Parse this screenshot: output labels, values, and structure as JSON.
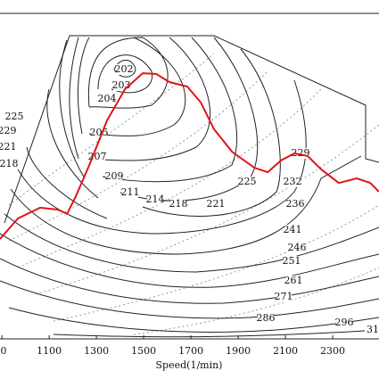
{
  "chart_data": {
    "type": "line",
    "x_label": "Speed(1/min)",
    "xlim": [
      892,
      2496
    ],
    "ylim": [
      0,
      100
    ],
    "xticks": [
      {
        "value": 900,
        "label": "0"
      },
      1100,
      1300,
      1500,
      1700,
      1900,
      2100,
      2300
    ],
    "series": [
      {
        "color": "#e0141b",
        "x": [
          892,
          968,
          1062,
          1138,
          1176,
          1213,
          1270,
          1345,
          1421,
          1496,
          1553,
          1609,
          1685,
          1742,
          1798,
          1874,
          1968,
          2025,
          2081,
          2138,
          2194,
          2251,
          2326,
          2402,
          2459,
          2496
        ],
        "values": [
          30.7,
          37.0,
          40.3,
          39.7,
          38.4,
          43.8,
          53.4,
          67.1,
          76.7,
          81.6,
          81.4,
          78.9,
          77.5,
          72.6,
          64.4,
          57.5,
          52.6,
          51.2,
          54.8,
          57.0,
          56.2,
          52.1,
          47.9,
          49.3,
          47.9,
          45.2
        ]
      }
    ],
    "contour_labels": [
      "202",
      "203",
      "204",
      "205",
      "207",
      "209",
      "211",
      "214",
      "218",
      "221",
      "225",
      "229",
      "232",
      "236",
      "241",
      "246",
      "251",
      "261",
      "271",
      "286",
      "296",
      "31",
      "225",
      "229",
      "221",
      "218"
    ]
  }
}
